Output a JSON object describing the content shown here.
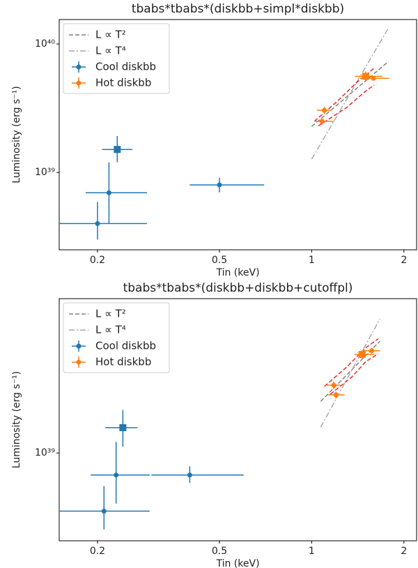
{
  "chart_data": [
    {
      "type": "scatter",
      "title": "tbabs*tbabs*(diskbb+simpl*diskbb)",
      "x_label": "Tin (keV)",
      "y_label": "Luminosity (erg s⁻¹)",
      "log_x": true,
      "log_y": true,
      "xlim": [
        0.15,
        2.2
      ],
      "ylim": [
        2.5e+38,
        1.55e+40
      ],
      "xticks": [
        0.2,
        0.5,
        1,
        2
      ],
      "yticks": [
        {
          "value": 1e+39,
          "label": "10³⁹"
        },
        {
          "value": 1e+40,
          "label": "10⁴⁰"
        }
      ],
      "legend": "upper left",
      "series": [
        {
          "name": "L ∝ T²",
          "kind": "line",
          "style": "dashed",
          "color": "#808080",
          "x": [
            1.0,
            1.78
          ],
          "values": [
            2.28e+39,
            7.3e+39
          ]
        },
        {
          "name": "L ∝ T⁴",
          "kind": "line",
          "style": "dashdot",
          "color": "#a9a9a9",
          "x": [
            1.0,
            1.78
          ],
          "values": [
            1.27e+39,
            1.33e+40
          ]
        },
        {
          "kind": "line",
          "style": "dashed",
          "color": "#e8282b",
          "x": [
            1.02,
            1.2,
            1.4,
            1.6
          ],
          "values": [
            2.5e+39,
            3.5e+39,
            5e+39,
            6.5e+39
          ]
        },
        {
          "kind": "line",
          "style": "dashed",
          "color": "#e8282b",
          "x": [
            1.05,
            1.3,
            1.5,
            1.6
          ],
          "values": [
            2.3e+39,
            3.2e+39,
            4.3e+39,
            4.8e+39
          ]
        },
        {
          "name": "Cool diskbb",
          "kind": "errorbar",
          "color": "#1f77b4",
          "markers": [
            "o",
            "o",
            "o",
            "s"
          ],
          "x": [
            0.2,
            0.218,
            0.5,
            0.232
          ],
          "x_lo": [
            0.15,
            0.183,
            0.4,
            0.207
          ],
          "x_hi": [
            0.29,
            0.29,
            0.7,
            0.26
          ],
          "values": [
            4e+38,
            6.95e+38,
            8e+38,
            1.51e+39
          ],
          "y_lo": [
            3e+38,
            4e+38,
            7e+38,
            1.2e+39
          ],
          "y_hi": [
            5.9e+38,
            1.2e+39,
            9.1e+38,
            1.92e+39
          ]
        },
        {
          "name": "Hot diskbb",
          "kind": "errorbar",
          "color": "#ff7f0e",
          "markers": [
            "o",
            "o",
            "s",
            "o"
          ],
          "x": [
            1.1,
            1.08,
            1.5,
            1.59
          ],
          "x_lo": [
            1.04,
            1.02,
            1.38,
            1.44
          ],
          "x_hi": [
            1.16,
            1.18,
            1.7,
            1.79
          ],
          "values": [
            3.05e+39,
            2.5e+39,
            5.6e+39,
            5.4e+39
          ],
          "y_lo": [
            2.85e+39,
            2.35e+39,
            5.1e+39,
            5.2e+39
          ],
          "y_hi": [
            3.25e+39,
            2.65e+39,
            6.1e+39,
            5.6e+39
          ]
        }
      ]
    },
    {
      "type": "scatter",
      "title": "tbabs*tbabs*(diskbb+diskbb+cutoffpl)",
      "x_label": "Tin (keV)",
      "y_label": "Luminosity (erg s⁻¹)",
      "log_x": true,
      "log_y": true,
      "xlim": [
        0.15,
        2.2
      ],
      "ylim": [
        2.7e+38,
        1e+40
      ],
      "xticks": [
        0.2,
        0.5,
        1,
        2
      ],
      "yticks": [
        {
          "value": 1e+39,
          "label": "10³⁹"
        }
      ],
      "legend": "upper left",
      "series": [
        {
          "name": "L ∝ T²",
          "kind": "line",
          "style": "dashed",
          "color": "#808080",
          "x": [
            1.07,
            1.67
          ],
          "values": [
            2.16e+39,
            5.3e+39
          ]
        },
        {
          "name": "L ∝ T⁴",
          "kind": "line",
          "style": "dashdot",
          "color": "#a9a9a9",
          "x": [
            1.07,
            1.67
          ],
          "values": [
            1.47e+39,
            7.4e+39
          ]
        },
        {
          "kind": "line",
          "style": "dashed",
          "color": "#e8282b",
          "x": [
            1.1,
            1.3,
            1.5,
            1.65
          ],
          "values": [
            2.7e+39,
            3.6e+39,
            4.8e+39,
            5.5e+39
          ]
        },
        {
          "kind": "line",
          "style": "dashed",
          "color": "#e8282b",
          "x": [
            1.15,
            1.35,
            1.5,
            1.65
          ],
          "values": [
            2.4e+39,
            3.1e+39,
            3.9e+39,
            4.4e+39
          ]
        },
        {
          "name": "Cool diskbb",
          "kind": "errorbar",
          "color": "#1f77b4",
          "markers": [
            "o",
            "o",
            "o",
            "s"
          ],
          "x": [
            0.21,
            0.23,
            0.4,
            0.242
          ],
          "x_lo": [
            0.15,
            0.19,
            0.3,
            0.212
          ],
          "x_hi": [
            0.296,
            0.296,
            0.6,
            0.27
          ],
          "values": [
            4.2e+38,
            7.2e+38,
            7.2e+38,
            1.46e+39
          ],
          "y_lo": [
            3.2e+38,
            4.7e+38,
            6.4e+38,
            1.1e+39
          ],
          "y_hi": [
            6.1e+38,
            1.18e+39,
            8.2e+38,
            1.9e+39
          ]
        },
        {
          "name": "Hot diskbb",
          "kind": "errorbar",
          "color": "#ff7f0e",
          "markers": [
            "o",
            "o",
            "s",
            "o"
          ],
          "x": [
            1.18,
            1.2,
            1.46,
            1.57
          ],
          "x_lo": [
            1.12,
            1.13,
            1.38,
            1.46
          ],
          "x_hi": [
            1.24,
            1.28,
            1.6,
            1.67
          ],
          "values": [
            2.75e+39,
            2.38e+39,
            4.35e+39,
            4.6e+39
          ],
          "y_lo": [
            2.6e+39,
            2.25e+39,
            4.1e+39,
            4.4e+39
          ],
          "y_hi": [
            2.9e+39,
            2.5e+39,
            4.6e+39,
            4.8e+39
          ]
        }
      ]
    }
  ]
}
